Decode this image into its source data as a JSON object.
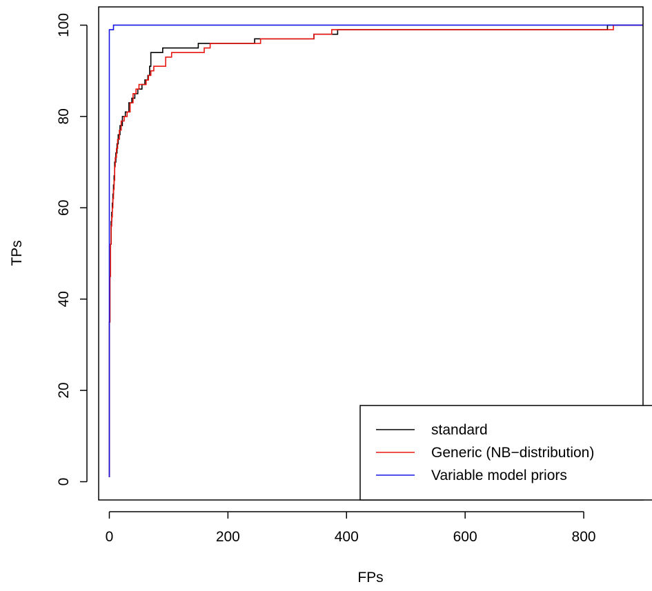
{
  "chart_data": {
    "type": "line",
    "title": "",
    "xlabel": "FPs",
    "ylabel": "TPs",
    "xlim": [
      -18,
      900
    ],
    "ylim": [
      -4,
      104
    ],
    "xticks": [
      0,
      200,
      400,
      600,
      800
    ],
    "yticks": [
      0,
      20,
      40,
      60,
      80,
      100
    ],
    "grid": false,
    "legend_position": "bottom-right",
    "series": [
      {
        "name": "standard",
        "color": "#000000",
        "step": true,
        "points": [
          [
            0,
            1
          ],
          [
            0,
            35
          ],
          [
            1,
            45
          ],
          [
            2,
            52
          ],
          [
            3,
            57
          ],
          [
            4,
            59
          ],
          [
            5,
            61
          ],
          [
            6,
            63
          ],
          [
            7,
            65
          ],
          [
            8,
            67
          ],
          [
            9,
            70
          ],
          [
            11,
            72
          ],
          [
            13,
            74
          ],
          [
            15,
            76
          ],
          [
            18,
            78
          ],
          [
            22,
            80
          ],
          [
            27,
            81
          ],
          [
            33,
            83
          ],
          [
            38,
            84
          ],
          [
            43,
            85
          ],
          [
            48,
            86
          ],
          [
            55,
            87
          ],
          [
            60,
            88
          ],
          [
            65,
            89
          ],
          [
            68,
            91
          ],
          [
            70,
            94
          ],
          [
            90,
            95
          ],
          [
            100,
            95
          ],
          [
            150,
            96
          ],
          [
            200,
            96
          ],
          [
            245,
            97
          ],
          [
            340,
            97
          ],
          [
            345,
            98
          ],
          [
            380,
            98
          ],
          [
            385,
            99
          ],
          [
            600,
            99
          ],
          [
            838,
            99
          ],
          [
            840,
            100
          ],
          [
            900,
            100
          ]
        ]
      },
      {
        "name": "Generic (NB−distribution)",
        "color": "#e8150f",
        "step": true,
        "points": [
          [
            0,
            1
          ],
          [
            0,
            35
          ],
          [
            1,
            45
          ],
          [
            2,
            52
          ],
          [
            3,
            56
          ],
          [
            4,
            58
          ],
          [
            5,
            60
          ],
          [
            6,
            62
          ],
          [
            7,
            64
          ],
          [
            8,
            66
          ],
          [
            9,
            69
          ],
          [
            10,
            71
          ],
          [
            12,
            73
          ],
          [
            14,
            75
          ],
          [
            17,
            77
          ],
          [
            20,
            79
          ],
          [
            25,
            80
          ],
          [
            30,
            81
          ],
          [
            35,
            83
          ],
          [
            40,
            85
          ],
          [
            45,
            86
          ],
          [
            50,
            87
          ],
          [
            57,
            87
          ],
          [
            62,
            88
          ],
          [
            66,
            89
          ],
          [
            70,
            90
          ],
          [
            75,
            91
          ],
          [
            95,
            93
          ],
          [
            105,
            94
          ],
          [
            160,
            95
          ],
          [
            170,
            96
          ],
          [
            250,
            96
          ],
          [
            255,
            97
          ],
          [
            340,
            97
          ],
          [
            345,
            98
          ],
          [
            370,
            98
          ],
          [
            375,
            99
          ],
          [
            845,
            99
          ],
          [
            850,
            100
          ],
          [
            900,
            100
          ]
        ]
      },
      {
        "name": "Variable model priors",
        "color": "#1515e8",
        "step": true,
        "points": [
          [
            0,
            1
          ],
          [
            0,
            99
          ],
          [
            6,
            99
          ],
          [
            7,
            100
          ],
          [
            900,
            100
          ]
        ]
      }
    ]
  }
}
